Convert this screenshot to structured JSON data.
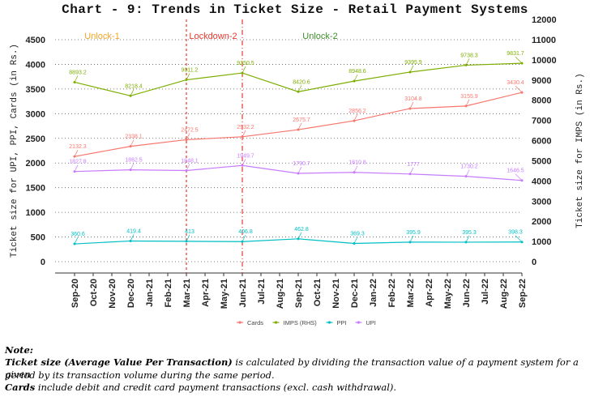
{
  "chart_data": {
    "type": "line",
    "title": "Chart - 9: Trends in Ticket Size - Retail Payment Systems",
    "ylabel": "Ticket size for UPI, PPI, Cards (in Rs.)",
    "y2label": "Ticket size for IMPS (in Rs.)",
    "ylim": [
      0,
      4500
    ],
    "y2lim": [
      0,
      12000
    ],
    "yticks": [
      "0",
      "500",
      "1000",
      "1500",
      "2000",
      "2500",
      "3000",
      "3500",
      "4000",
      "4500"
    ],
    "y2ticks": [
      "0",
      "1000",
      "2000",
      "3000",
      "4000",
      "5000",
      "6000",
      "7000",
      "8000",
      "9000",
      "10000",
      "11000",
      "12000"
    ],
    "grid": true,
    "legend": "bottom",
    "categories": [
      "Sep-20",
      "Oct-20",
      "Nov-20",
      "Dec-20",
      "Jan-21",
      "Feb-21",
      "Mar-21",
      "Apr-21",
      "May-21",
      "Jun-21",
      "Jul-21",
      "Aug-21",
      "Sep-21",
      "Oct-21",
      "Nov-21",
      "Dec-21",
      "Jan-22",
      "Feb-22",
      "Mar-22",
      "Apr-22",
      "May-22",
      "Jun-22",
      "Jul-22",
      "Aug-22",
      "Sep-22"
    ],
    "point_categories": [
      "Sep-20",
      "Dec-20",
      "Mar-21",
      "Jun-21",
      "Sep-21",
      "Dec-21",
      "Mar-22",
      "Jun-22",
      "Sep-22"
    ],
    "series": [
      {
        "name": "Cards",
        "axis": "left",
        "color": "#f8766d",
        "values": [
          2132.3,
          2338.1,
          2472.5,
          2532.2,
          2675.7,
          2856.2,
          3104.8,
          3155.9,
          3430.4
        ]
      },
      {
        "name": "IMPS (RHS)",
        "axis": "right",
        "color": "#7cae00",
        "values": [
          8893.2,
          8218.4,
          9011.2,
          9350.5,
          8420.6,
          8948.6,
          9395.9,
          9738.3,
          9831.7
        ]
      },
      {
        "name": "PPI",
        "axis": "left",
        "color": "#00bfc4",
        "values": [
          360.6,
          419.4,
          413,
          406.8,
          462.8,
          369.3,
          395.9,
          395.3,
          398.3
        ]
      },
      {
        "name": "UPI",
        "axis": "left",
        "color": "#c77cff",
        "values": [
          1827.8,
          1862.5,
          1848.1,
          1949.7,
          1790.7,
          1810.8,
          1777,
          1730.2,
          1646.5
        ]
      }
    ],
    "annotations": [
      {
        "text": "Unlock-1",
        "color": "#f5a623"
      },
      {
        "text": "Lockdown-2",
        "color": "#e8382e"
      },
      {
        "text": "Unlock-2",
        "color": "#3e8e2a"
      }
    ],
    "vlines": [
      "Mar-21",
      "Jun-21"
    ],
    "vline_color": "#e8382e"
  },
  "note": {
    "heading": "Note:",
    "line1_bold": "Ticket size (Average Value Per Transaction)",
    "line1_rest": " is calculated by dividing the transaction value of a payment system for a given",
    "line2": "period by its transaction volume during the same period.",
    "line3_bold": "Cards",
    "line3_rest": " include debit and credit card payment transactions (excl. cash withdrawal)."
  }
}
